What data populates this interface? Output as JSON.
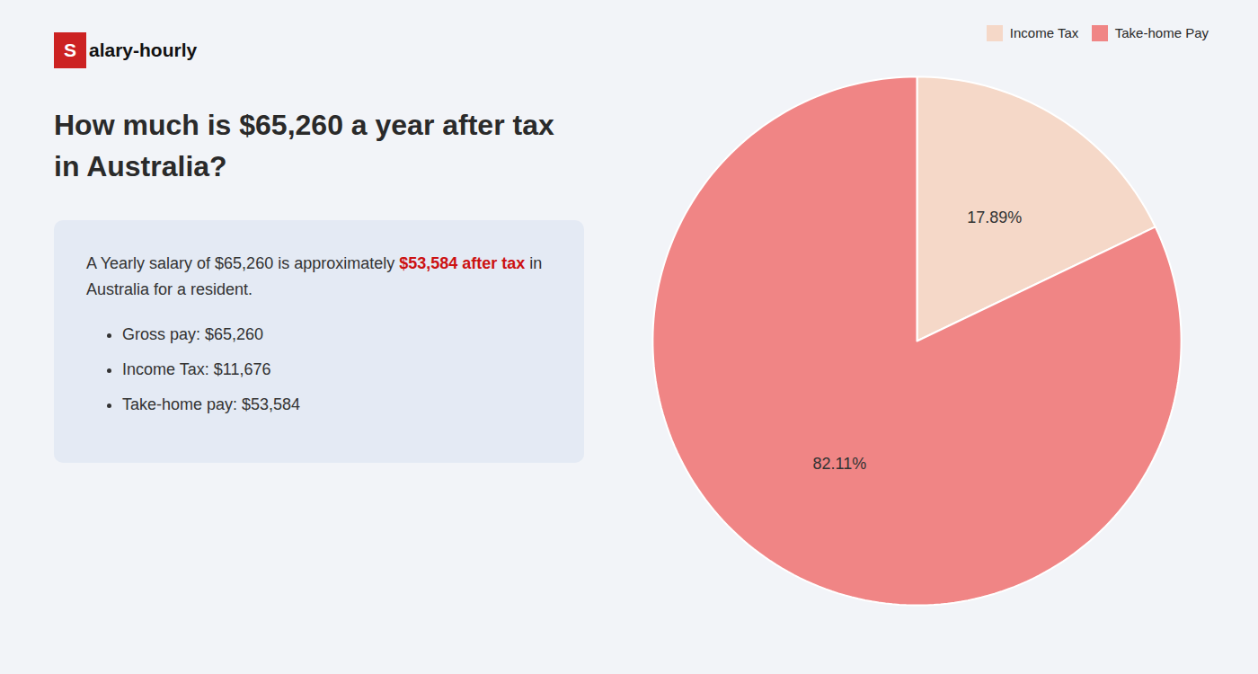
{
  "chart_data": {
    "type": "pie",
    "title": "How much is $65,260 a year after tax in Australia?",
    "annotations": [
      "Salary-hourly",
      "A Yearly salary of $65,260 is approximately ",
      "$53,584 after tax",
      " in",
      "Australia for a resident.",
      "Gross pay: $65,260",
      "Income Tax: $11,676",
      "Take-home pay: $53,584"
    ],
    "categories": [
      "Income Tax",
      "Take-home Pay"
    ],
    "values": [
      17.89,
      82.11
    ],
    "value_labels": [
      "17.89%",
      "82.11%"
    ],
    "colors": [
      "#f5d8c8",
      "#f08585"
    ],
    "data_labels": true,
    "legend": "upper right"
  }
}
